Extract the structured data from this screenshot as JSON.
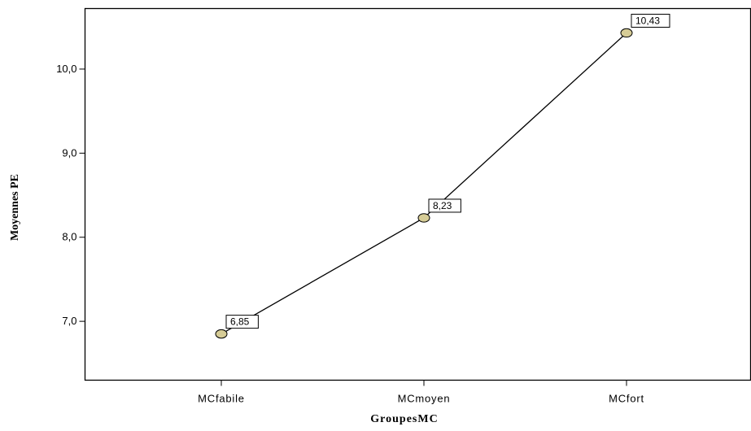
{
  "chart_data": {
    "type": "line",
    "xlabel": "GroupesMC",
    "ylabel": "Moyennes PE",
    "categories": [
      "MCfabile",
      "MCmoyen",
      "MCfort"
    ],
    "series": [
      {
        "values": [
          6.85,
          8.23,
          10.43
        ]
      }
    ],
    "data_labels": [
      "6,85",
      "8,23",
      "10,43"
    ],
    "y_ticks": [
      {
        "value": 7.0,
        "label": "7,0"
      },
      {
        "value": 8.0,
        "label": "8,0"
      },
      {
        "value": 9.0,
        "label": "9,0"
      },
      {
        "value": 10.0,
        "label": "10,0"
      }
    ],
    "ylim": [
      6.3,
      10.72
    ],
    "grid": false,
    "colors": {
      "line": "#000000",
      "marker_fill": "#d6cc96",
      "marker_stroke": "#000000",
      "label_box": "#ffffff"
    }
  }
}
